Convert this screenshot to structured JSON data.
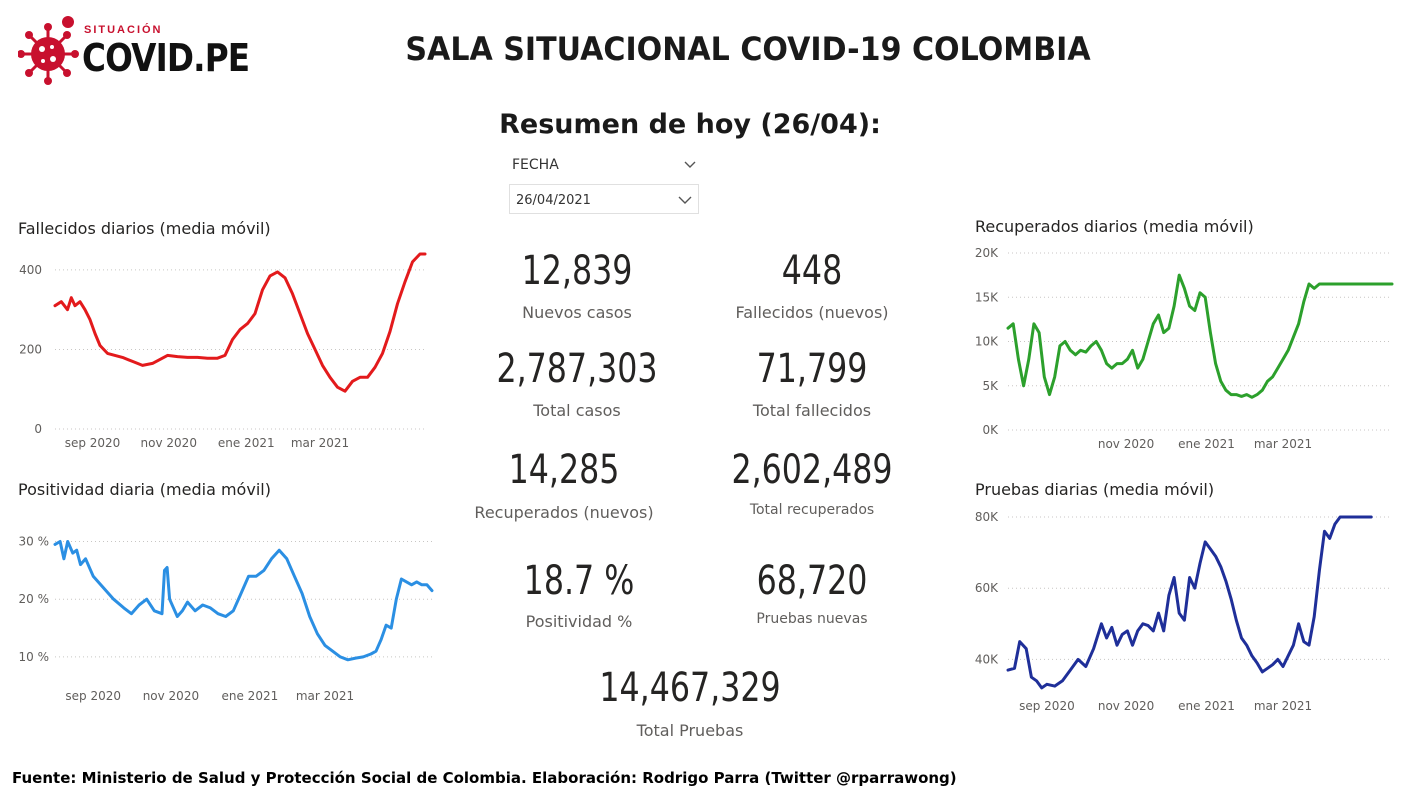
{
  "header": {
    "logo_top": "SITUACIÓN",
    "logo_main": "COVID.PE",
    "title": "SALA SITUACIONAL COVID-19 COLOMBIA",
    "subtitle": "Resumen de hoy (26/04):"
  },
  "slicer": {
    "label": "FECHA",
    "value": "26/04/2021"
  },
  "kpis": {
    "nuevos_casos": {
      "value": "12,839",
      "label": "Nuevos casos"
    },
    "fallecidos_nuevos": {
      "value": "448",
      "label": "Fallecidos (nuevos)"
    },
    "total_casos": {
      "value": "2,787,303",
      "label": "Total casos"
    },
    "total_fallecidos": {
      "value": "71,799",
      "label": "Total fallecidos"
    },
    "recuperados_nuevos": {
      "value": "14,285",
      "label": "Recuperados (nuevos)"
    },
    "total_recuperados": {
      "value": "2,602,489",
      "label": "Total recuperados"
    },
    "positividad": {
      "value": "18.7 %",
      "label": "Positividad %"
    },
    "pruebas_nuevas": {
      "value": "68,720",
      "label": "Pruebas nuevas"
    },
    "total_pruebas": {
      "value": "14,467,329",
      "label": "Total Pruebas"
    }
  },
  "footer": "Fuente: Ministerio de Salud y Protección Social de Colombia. Elaboración: Rodrigo Parra (Twitter @rparrawong)",
  "colors": {
    "fallecidos": "#e31a1c",
    "positividad": "#2b8fe3",
    "recuperados": "#2ca02c",
    "pruebas": "#1f2f99",
    "logo_red": "#c8102e"
  },
  "chart_data": [
    {
      "id": "fallecidos",
      "type": "line",
      "title": "Fallecidos diarios (media móvil)",
      "ylim": [
        0,
        450
      ],
      "yticks": [
        0,
        200,
        400
      ],
      "ytick_labels": [
        "0",
        "200",
        "400"
      ],
      "xlim": [
        0,
        296
      ],
      "xticks": [
        30,
        91,
        153,
        212
      ],
      "xtick_labels": [
        "sep 2020",
        "nov 2020",
        "ene 2021",
        "mar 2021"
      ],
      "grid": true,
      "x": [
        0,
        5,
        10,
        13,
        16,
        20,
        24,
        28,
        32,
        36,
        42,
        48,
        54,
        62,
        70,
        78,
        84,
        90,
        98,
        106,
        114,
        122,
        130,
        136,
        142,
        148,
        154,
        160,
        166,
        172,
        178,
        184,
        190,
        196,
        202,
        208,
        214,
        220,
        226,
        232,
        238,
        244,
        250,
        256,
        262,
        268,
        274,
        280,
        286,
        292,
        296
      ],
      "values": [
        310,
        320,
        300,
        330,
        310,
        320,
        300,
        275,
        240,
        210,
        190,
        185,
        180,
        170,
        160,
        165,
        175,
        185,
        182,
        180,
        180,
        178,
        178,
        185,
        225,
        250,
        265,
        290,
        350,
        385,
        395,
        380,
        340,
        290,
        240,
        200,
        160,
        130,
        105,
        95,
        120,
        130,
        130,
        155,
        190,
        245,
        315,
        370,
        420,
        440,
        440
      ]
    },
    {
      "id": "positividad",
      "type": "line",
      "title": "Positividad diaria (media móvil)",
      "ylim": [
        6,
        32
      ],
      "yticks": [
        10,
        20,
        30
      ],
      "ytick_labels": [
        "10 %",
        "20 %",
        "30 %"
      ],
      "xlim": [
        0,
        296
      ],
      "xticks": [
        30,
        91,
        153,
        212
      ],
      "xtick_labels": [
        "sep 2020",
        "nov 2020",
        "ene 2021",
        "mar 2021"
      ],
      "grid": true,
      "x": [
        0,
        4,
        7,
        10,
        14,
        17,
        20,
        24,
        30,
        38,
        46,
        54,
        60,
        66,
        72,
        78,
        84,
        86,
        88,
        90,
        96,
        100,
        104,
        110,
        116,
        122,
        128,
        134,
        140,
        146,
        152,
        158,
        164,
        170,
        176,
        182,
        188,
        194,
        200,
        206,
        212,
        218,
        224,
        230,
        236,
        242,
        248,
        252,
        256,
        260,
        264,
        268,
        272,
        276,
        280,
        284,
        288,
        292,
        296
      ],
      "values": [
        29.5,
        30,
        27,
        30,
        28,
        28.5,
        26,
        27,
        24,
        22,
        20,
        18.5,
        17.5,
        19,
        20,
        18,
        17.5,
        25,
        25.5,
        20,
        17,
        18,
        19.5,
        18,
        19,
        18.5,
        17.5,
        17,
        18,
        21,
        24,
        24,
        25,
        27,
        28.5,
        27,
        24,
        21,
        17,
        14,
        12,
        11,
        10,
        9.5,
        9.8,
        10,
        10.5,
        11,
        13,
        15.5,
        15,
        20,
        23.5,
        23,
        22.5,
        23,
        22.5,
        22.5,
        21.5
      ]
    },
    {
      "id": "recuperados",
      "type": "line",
      "title": "Recuperados diarios (media móvil)",
      "ylim": [
        0,
        20000
      ],
      "yticks": [
        0,
        5000,
        10000,
        15000,
        20000
      ],
      "ytick_labels": [
        "0K",
        "5K",
        "10K",
        "15K",
        "20K"
      ],
      "xlim": [
        0,
        296
      ],
      "xticks": [
        91,
        153,
        212
      ],
      "xtick_labels": [
        "nov 2020",
        "ene 2021",
        "mar 2021"
      ],
      "grid": true,
      "x": [
        0,
        4,
        8,
        12,
        16,
        20,
        24,
        28,
        32,
        36,
        40,
        44,
        48,
        52,
        56,
        60,
        64,
        68,
        72,
        76,
        80,
        84,
        88,
        92,
        96,
        100,
        104,
        108,
        112,
        116,
        120,
        124,
        128,
        132,
        136,
        140,
        144,
        148,
        152,
        156,
        160,
        164,
        168,
        172,
        176,
        180,
        184,
        188,
        192,
        196,
        200,
        204,
        208,
        212,
        216,
        220,
        224,
        228,
        232,
        236,
        240,
        244,
        248,
        252,
        256,
        260,
        264,
        268,
        272,
        276,
        280,
        284,
        288,
        292,
        296
      ],
      "values": [
        11500,
        12000,
        8000,
        5000,
        8000,
        12000,
        11000,
        6000,
        4000,
        6000,
        9500,
        10000,
        9000,
        8500,
        9000,
        8800,
        9500,
        10000,
        9000,
        7500,
        7000,
        7500,
        7500,
        8000,
        9000,
        7000,
        8000,
        10000,
        12000,
        13000,
        11000,
        11500,
        14000,
        17500,
        16000,
        14000,
        13500,
        15500,
        15000,
        11000,
        7500,
        5500,
        4500,
        4000,
        4000,
        3800,
        4000,
        3700,
        4000,
        4500,
        5500,
        6000,
        7000,
        8000,
        9000,
        10500,
        12000,
        14500,
        16500,
        16000,
        16500,
        16500,
        16500,
        16500,
        16500,
        16500,
        16500,
        16500,
        16500,
        16500,
        16500,
        16500,
        16500,
        16500,
        16500
      ]
    },
    {
      "id": "pruebas",
      "type": "line",
      "title": "Pruebas diarias (media móvil)",
      "ylim": [
        30000,
        80000
      ],
      "yticks": [
        40000,
        60000,
        80000
      ],
      "ytick_labels": [
        "40K",
        "60K",
        "80K"
      ],
      "xlim": [
        0,
        296
      ],
      "xticks": [
        30,
        91,
        153,
        212
      ],
      "xtick_labels": [
        "sep 2020",
        "nov 2020",
        "ene 2021",
        "mar 2021"
      ],
      "grid": true,
      "x": [
        0,
        5,
        9,
        14,
        18,
        22,
        26,
        30,
        36,
        42,
        48,
        54,
        60,
        66,
        72,
        76,
        80,
        84,
        88,
        92,
        96,
        100,
        104,
        108,
        112,
        116,
        120,
        124,
        128,
        132,
        136,
        140,
        144,
        148,
        152,
        156,
        160,
        164,
        168,
        172,
        176,
        180,
        184,
        188,
        192,
        196,
        200,
        204,
        208,
        212,
        216,
        220,
        224,
        228,
        232,
        236,
        240,
        244,
        248,
        252,
        256,
        260,
        264,
        268,
        272,
        276,
        280
      ],
      "values": [
        37000,
        37500,
        45000,
        43000,
        35000,
        34000,
        32000,
        33000,
        32500,
        34000,
        37000,
        40000,
        38000,
        43000,
        50000,
        46000,
        49000,
        44000,
        47000,
        48000,
        44000,
        48000,
        50000,
        49500,
        48000,
        53000,
        48000,
        58000,
        63000,
        53000,
        51000,
        63000,
        60000,
        67000,
        73000,
        71000,
        69000,
        66000,
        62000,
        57000,
        51000,
        46000,
        44000,
        41000,
        39000,
        36500,
        37500,
        38500,
        40000,
        38000,
        41000,
        44000,
        50000,
        45000,
        44000,
        52000,
        65000,
        76000,
        74000,
        78000,
        80000,
        80000,
        80000,
        80000,
        80000,
        80000,
        80000
      ]
    }
  ]
}
